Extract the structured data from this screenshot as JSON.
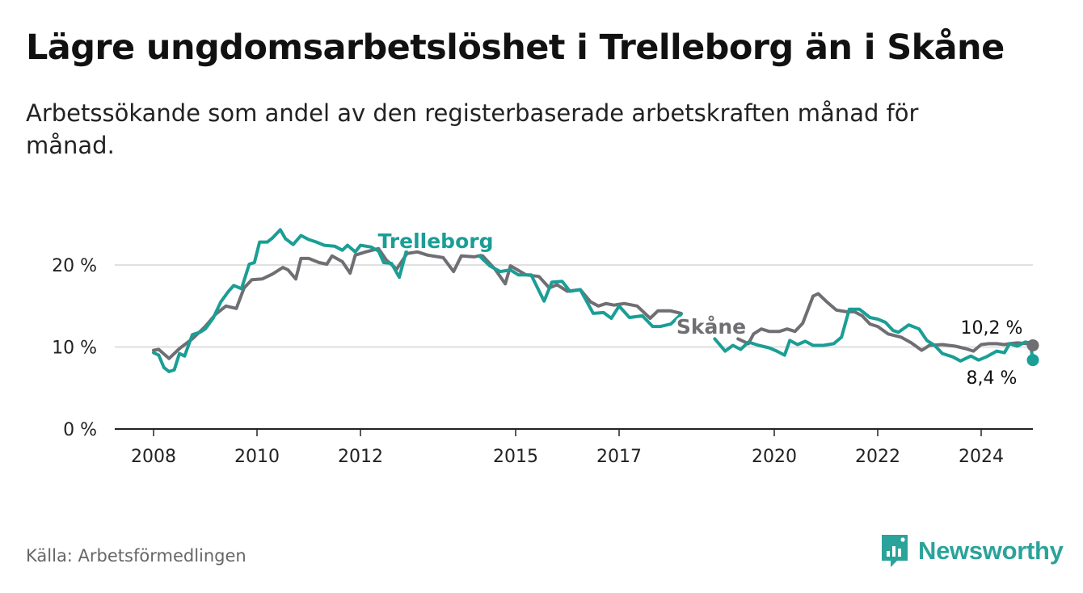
{
  "header": {
    "title": "Lägre ungdomsarbetslöshet i Trelleborg än i Skåne",
    "subtitle": "Arbetssökande som andel av den registerbaserade arbetskraften månad för månad."
  },
  "footer": {
    "source": "Källa: Arbetsförmedlingen",
    "brand": "Newsworthy"
  },
  "colors": {
    "trelleborg": "#1a9e95",
    "skane": "#6f6f73",
    "grid": "#d6d6d6",
    "axis": "#222222"
  },
  "chart_data": {
    "type": "line",
    "title": "Lägre ungdomsarbetslöshet i Trelleborg än i Skåne",
    "xlabel": "",
    "ylabel": "",
    "ylim": [
      0,
      25
    ],
    "xlim": [
      2007.25,
      2025.0
    ],
    "yticks": [
      0,
      10,
      20
    ],
    "ytick_labels": [
      "0 %",
      "10 %",
      "20 %"
    ],
    "xticks": [
      2008,
      2010,
      2012,
      2015,
      2017,
      2020,
      2022,
      2024
    ],
    "xtick_labels": [
      "2008",
      "2010",
      "2012",
      "2015",
      "2017",
      "2020",
      "2022",
      "2024"
    ],
    "grid": true,
    "series": [
      {
        "name": "Skåne",
        "label": "Skåne",
        "end_label": "10,2 %",
        "points": [
          [
            2008.0,
            9.6
          ],
          [
            2008.1,
            9.7
          ],
          [
            2008.3,
            8.6
          ],
          [
            2008.5,
            9.8
          ],
          [
            2008.75,
            11.0
          ],
          [
            2009.0,
            12.5
          ],
          [
            2009.2,
            14.0
          ],
          [
            2009.4,
            15.0
          ],
          [
            2009.6,
            14.7
          ],
          [
            2009.75,
            17.2
          ],
          [
            2009.9,
            18.2
          ],
          [
            2010.1,
            18.3
          ],
          [
            2010.3,
            18.9
          ],
          [
            2010.5,
            19.7
          ],
          [
            2010.6,
            19.4
          ],
          [
            2010.75,
            18.3
          ],
          [
            2010.85,
            20.8
          ],
          [
            2011.0,
            20.8
          ],
          [
            2011.2,
            20.3
          ],
          [
            2011.35,
            20.1
          ],
          [
            2011.45,
            21.1
          ],
          [
            2011.65,
            20.4
          ],
          [
            2011.8,
            19.0
          ],
          [
            2011.9,
            21.2
          ],
          [
            2012.1,
            21.6
          ],
          [
            2012.35,
            22.0
          ],
          [
            2012.5,
            20.6
          ],
          [
            2012.7,
            19.5
          ],
          [
            2012.9,
            21.4
          ],
          [
            2013.1,
            21.6
          ],
          [
            2013.3,
            21.2
          ],
          [
            2013.6,
            20.9
          ],
          [
            2013.8,
            19.2
          ],
          [
            2013.95,
            21.1
          ],
          [
            2014.2,
            21.0
          ],
          [
            2014.35,
            21.2
          ],
          [
            2014.6,
            19.5
          ],
          [
            2014.8,
            17.7
          ],
          [
            2014.9,
            19.9
          ],
          [
            2015.2,
            18.8
          ],
          [
            2015.45,
            18.6
          ],
          [
            2015.65,
            17.2
          ],
          [
            2015.8,
            17.6
          ],
          [
            2016.0,
            16.8
          ],
          [
            2016.25,
            17.0
          ],
          [
            2016.45,
            15.5
          ],
          [
            2016.6,
            15.0
          ],
          [
            2016.75,
            15.3
          ],
          [
            2016.9,
            15.1
          ],
          [
            2017.1,
            15.3
          ],
          [
            2017.35,
            15.0
          ],
          [
            2017.6,
            13.5
          ],
          [
            2017.75,
            14.4
          ],
          [
            2018.0,
            14.4
          ],
          [
            2018.2,
            14.1
          ]
        ],
        "points_b": [
          [
            2019.3,
            11.0
          ],
          [
            2019.5,
            10.4
          ],
          [
            2019.6,
            11.6
          ],
          [
            2019.75,
            12.2
          ],
          [
            2019.9,
            11.9
          ],
          [
            2020.1,
            11.9
          ],
          [
            2020.25,
            12.2
          ],
          [
            2020.4,
            11.9
          ],
          [
            2020.55,
            12.9
          ],
          [
            2020.75,
            16.2
          ],
          [
            2020.85,
            16.5
          ],
          [
            2021.0,
            15.6
          ],
          [
            2021.2,
            14.5
          ],
          [
            2021.4,
            14.3
          ],
          [
            2021.55,
            14.3
          ],
          [
            2021.7,
            13.8
          ],
          [
            2021.85,
            12.8
          ],
          [
            2022.0,
            12.5
          ],
          [
            2022.2,
            11.6
          ],
          [
            2022.45,
            11.2
          ],
          [
            2022.65,
            10.5
          ],
          [
            2022.85,
            9.6
          ],
          [
            2023.0,
            10.2
          ],
          [
            2023.25,
            10.3
          ],
          [
            2023.5,
            10.1
          ],
          [
            2023.7,
            9.8
          ],
          [
            2023.85,
            9.5
          ],
          [
            2024.0,
            10.3
          ],
          [
            2024.15,
            10.4
          ],
          [
            2024.3,
            10.4
          ],
          [
            2024.45,
            10.3
          ],
          [
            2024.55,
            10.4
          ],
          [
            2024.7,
            10.5
          ],
          [
            2024.9,
            10.4
          ],
          [
            2025.0,
            10.2
          ]
        ]
      },
      {
        "name": "Trelleborg",
        "label": "Trelleborg",
        "end_label": "8,4 %",
        "points": [
          [
            2008.0,
            9.3
          ],
          [
            2008.1,
            9.0
          ],
          [
            2008.2,
            7.5
          ],
          [
            2008.3,
            7.0
          ],
          [
            2008.4,
            7.2
          ],
          [
            2008.5,
            9.2
          ],
          [
            2008.6,
            8.9
          ],
          [
            2008.75,
            11.5
          ],
          [
            2008.9,
            11.8
          ],
          [
            2009.0,
            12.2
          ],
          [
            2009.15,
            13.5
          ],
          [
            2009.3,
            15.5
          ],
          [
            2009.45,
            16.8
          ],
          [
            2009.55,
            17.5
          ],
          [
            2009.7,
            17.1
          ],
          [
            2009.85,
            20.1
          ],
          [
            2009.95,
            20.3
          ],
          [
            2010.05,
            22.8
          ],
          [
            2010.2,
            22.8
          ],
          [
            2010.3,
            23.3
          ],
          [
            2010.45,
            24.3
          ],
          [
            2010.55,
            23.2
          ],
          [
            2010.7,
            22.5
          ],
          [
            2010.85,
            23.6
          ],
          [
            2011.0,
            23.1
          ],
          [
            2011.15,
            22.8
          ],
          [
            2011.3,
            22.4
          ],
          [
            2011.5,
            22.3
          ],
          [
            2011.65,
            21.8
          ],
          [
            2011.75,
            22.4
          ],
          [
            2011.9,
            21.6
          ],
          [
            2012.0,
            22.4
          ],
          [
            2012.2,
            22.2
          ],
          [
            2012.35,
            21.7
          ],
          [
            2012.45,
            20.3
          ],
          [
            2012.6,
            20.2
          ],
          [
            2012.75,
            18.5
          ],
          [
            2012.9,
            22.0
          ]
        ],
        "points_b": [
          [
            2014.3,
            21.1
          ],
          [
            2014.5,
            19.9
          ],
          [
            2014.7,
            19.2
          ],
          [
            2014.9,
            19.4
          ],
          [
            2015.05,
            18.8
          ],
          [
            2015.3,
            18.8
          ],
          [
            2015.55,
            15.6
          ],
          [
            2015.7,
            17.9
          ],
          [
            2015.9,
            18.0
          ],
          [
            2016.05,
            16.8
          ],
          [
            2016.25,
            17.0
          ],
          [
            2016.5,
            14.1
          ],
          [
            2016.7,
            14.2
          ],
          [
            2016.85,
            13.5
          ],
          [
            2017.0,
            15.0
          ],
          [
            2017.2,
            13.6
          ],
          [
            2017.45,
            13.8
          ],
          [
            2017.65,
            12.5
          ],
          [
            2017.8,
            12.5
          ],
          [
            2018.0,
            12.8
          ],
          [
            2018.2,
            14.0
          ]
        ],
        "points_c": [
          [
            2018.85,
            11.0
          ],
          [
            2019.05,
            9.5
          ],
          [
            2019.2,
            10.2
          ],
          [
            2019.35,
            9.7
          ],
          [
            2019.5,
            10.6
          ],
          [
            2019.7,
            10.2
          ],
          [
            2019.9,
            9.9
          ],
          [
            2020.05,
            9.5
          ],
          [
            2020.2,
            9.0
          ],
          [
            2020.3,
            10.8
          ],
          [
            2020.45,
            10.3
          ],
          [
            2020.6,
            10.7
          ],
          [
            2020.75,
            10.2
          ],
          [
            2020.95,
            10.2
          ],
          [
            2021.15,
            10.4
          ],
          [
            2021.3,
            11.2
          ],
          [
            2021.45,
            14.6
          ],
          [
            2021.65,
            14.6
          ],
          [
            2021.85,
            13.6
          ],
          [
            2022.0,
            13.4
          ],
          [
            2022.15,
            13.0
          ],
          [
            2022.3,
            12.0
          ],
          [
            2022.4,
            11.8
          ],
          [
            2022.6,
            12.7
          ],
          [
            2022.8,
            12.2
          ],
          [
            2022.95,
            10.8
          ],
          [
            2023.1,
            10.2
          ],
          [
            2023.25,
            9.2
          ],
          [
            2023.45,
            8.8
          ],
          [
            2023.6,
            8.3
          ],
          [
            2023.8,
            8.9
          ],
          [
            2023.95,
            8.4
          ],
          [
            2024.1,
            8.8
          ],
          [
            2024.3,
            9.5
          ],
          [
            2024.45,
            9.3
          ],
          [
            2024.55,
            10.4
          ],
          [
            2024.7,
            10.1
          ],
          [
            2024.85,
            10.6
          ],
          [
            2024.95,
            10.5
          ],
          [
            2025.0,
            8.4
          ]
        ]
      }
    ]
  }
}
